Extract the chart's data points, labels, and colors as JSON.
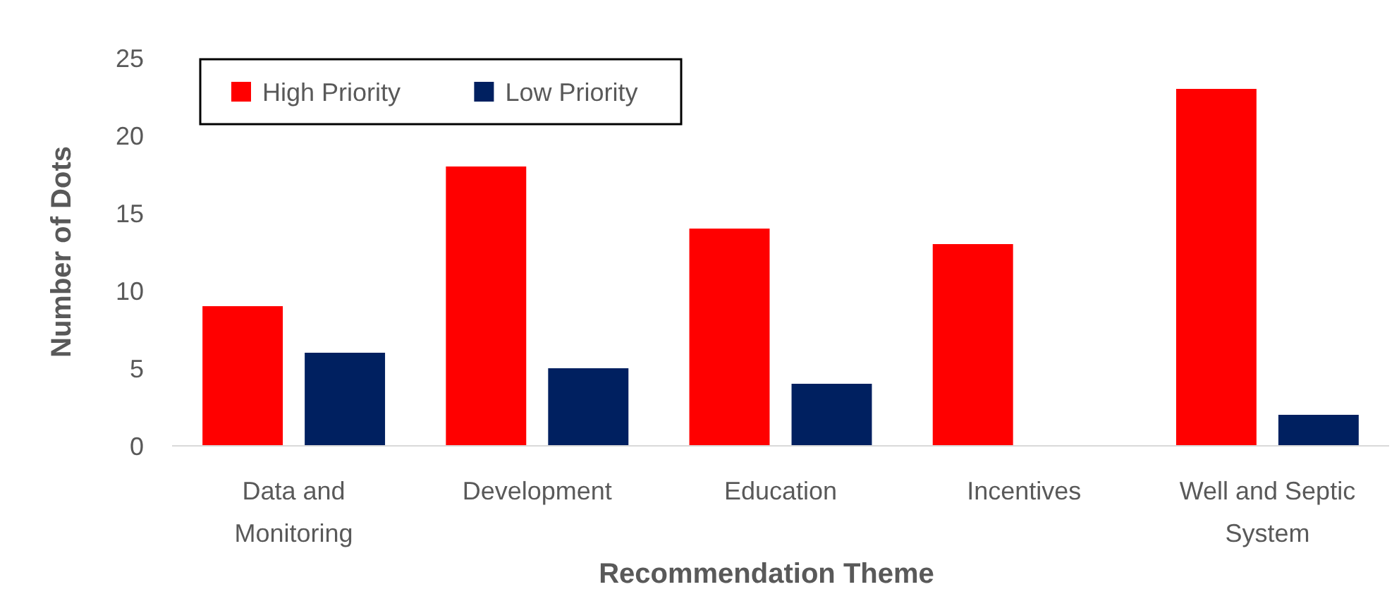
{
  "chart_data": {
    "type": "bar",
    "xlabel": "Recommendation Theme",
    "ylabel": "Number of Dots",
    "categories": [
      "Data and Monitoring",
      "Development",
      "Education",
      "Incentives",
      "Well and Septic System"
    ],
    "series": [
      {
        "name": "High Priority",
        "color": "#ff0000",
        "values": [
          9,
          18,
          14,
          13,
          23
        ]
      },
      {
        "name": "Low Priority",
        "color": "#002060",
        "values": [
          6,
          5,
          4,
          0,
          2
        ]
      }
    ],
    "ylim": [
      0,
      25
    ],
    "yticks": [
      0,
      5,
      10,
      15,
      20,
      25
    ],
    "grid": false,
    "legend": "top left"
  }
}
